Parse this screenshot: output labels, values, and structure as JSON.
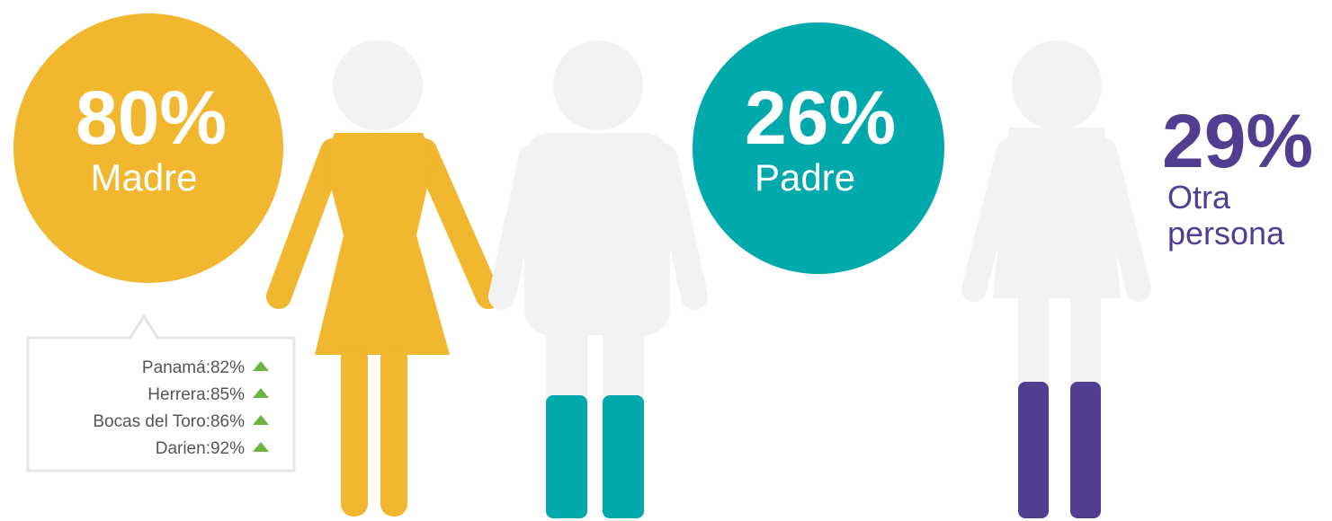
{
  "mother": {
    "percent": "80%",
    "label": "Madre",
    "regions": [
      "Panamá:82%",
      "Herrera:85%",
      "Bocas del Toro:86%",
      "Darien:92%"
    ]
  },
  "father": {
    "percent": "26%",
    "label": "Padre"
  },
  "other": {
    "percent": "29%",
    "label_lines": [
      "Otra",
      "persona"
    ]
  }
}
